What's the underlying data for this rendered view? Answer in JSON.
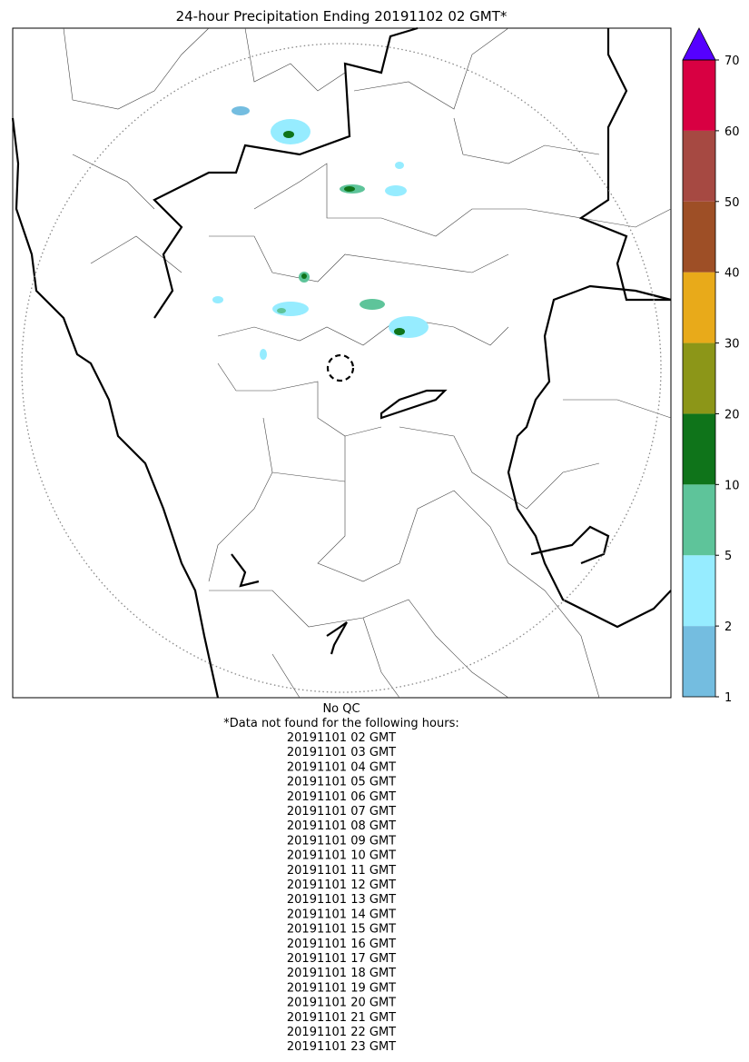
{
  "title": "24-hour Precipitation Ending 20191102 02 GMT*",
  "colorbar": {
    "boundaries": [
      1,
      2,
      5,
      10,
      20,
      30,
      40,
      50,
      60,
      70
    ],
    "colors": [
      "#74bde0",
      "#96ecff",
      "#5ec49a",
      "#0f741a",
      "#8c9618",
      "#e8aa1a",
      "#9e4f26",
      "#a64942",
      "#d80042"
    ],
    "extend_color": "#5500ff"
  },
  "notes": {
    "qc": "No QC",
    "missing_header": "*Data not found for the following hours:",
    "missing_hours": [
      "20191101 02 GMT",
      "20191101 03 GMT",
      "20191101 04 GMT",
      "20191101 05 GMT",
      "20191101 06 GMT",
      "20191101 07 GMT",
      "20191101 08 GMT",
      "20191101 09 GMT",
      "20191101 10 GMT",
      "20191101 11 GMT",
      "20191101 12 GMT",
      "20191101 13 GMT",
      "20191101 14 GMT",
      "20191101 15 GMT",
      "20191101 16 GMT",
      "20191101 17 GMT",
      "20191101 18 GMT",
      "20191101 19 GMT",
      "20191101 20 GMT",
      "20191101 21 GMT",
      "20191101 22 GMT",
      "20191101 23 GMT"
    ]
  }
}
